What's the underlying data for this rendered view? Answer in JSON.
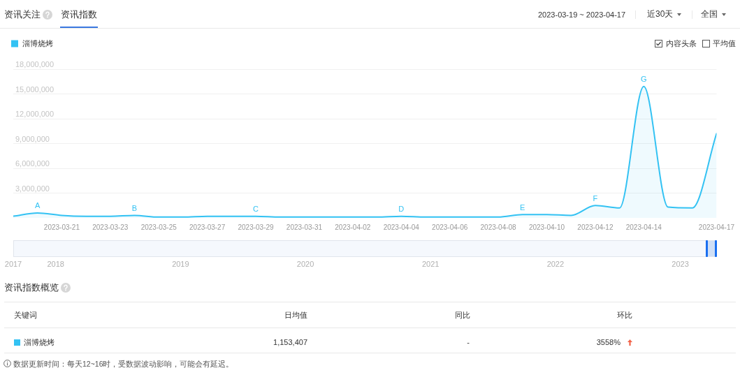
{
  "chart_data": [
    {
      "type": "other",
      "annotations": [
        "资讯关注",
        "资讯指数",
        "2023-03-19 ~ 2023-04-17",
        "近30天",
        "全国",
        "内容头条",
        "平均值"
      ]
    },
    {
      "type": "area",
      "x": [
        "2023-03-19",
        "2023-03-20",
        "2023-03-21",
        "2023-03-22",
        "2023-03-23",
        "2023-03-24",
        "2023-03-25",
        "2023-03-26",
        "2023-03-27",
        "2023-03-28",
        "2023-03-29",
        "2023-03-30",
        "2023-03-31",
        "2023-04-01",
        "2023-04-02",
        "2023-04-03",
        "2023-04-04",
        "2023-04-05",
        "2023-04-06",
        "2023-04-07",
        "2023-04-08",
        "2023-04-09",
        "2023-04-10",
        "2023-04-11",
        "2023-04-12",
        "2023-04-13",
        "2023-04-14",
        "2023-04-15",
        "2023-04-16",
        "2023-04-17"
      ],
      "series": [
        {
          "name": "淄博烧烤",
          "color": "#33c2f3",
          "values": [
            200000,
            600000,
            300000,
            200000,
            200000,
            300000,
            100000,
            100000,
            200000,
            200000,
            200000,
            100000,
            100000,
            100000,
            100000,
            100000,
            200000,
            100000,
            100000,
            100000,
            100000,
            400000,
            400000,
            300000,
            1500000,
            1200000,
            15900000,
            1300000,
            1200000,
            10200000
          ]
        }
      ],
      "xlim": [
        "2023-03-19",
        "2023-04-17"
      ],
      "xticks": [
        "2023-03-21",
        "2023-03-23",
        "2023-03-25",
        "2023-03-27",
        "2023-03-29",
        "2023-03-31",
        "2023-04-02",
        "2023-04-04",
        "2023-04-06",
        "2023-04-08",
        "2023-04-10",
        "2023-04-12",
        "2023-04-14",
        "2023-04-17"
      ],
      "x2lim": [
        "2017-08-30",
        "2023-04-17"
      ],
      "x2ticks": [
        {
          "value": "2017-08-30",
          "label": "2017"
        },
        {
          "value": "2018-01-01",
          "label": "2018"
        },
        {
          "value": "2019-01-01",
          "label": "2019"
        },
        {
          "value": "2020-01-01",
          "label": "2020"
        },
        {
          "value": "2021-01-01",
          "label": "2021"
        },
        {
          "value": "2022-01-01",
          "label": "2022"
        },
        {
          "value": "2023-01-01",
          "label": "2023"
        }
      ],
      "ylim": [
        0,
        18000000
      ],
      "yticks": [
        {
          "value": 3000000,
          "label": "3,000,000"
        },
        {
          "value": 6000000,
          "label": "6,000,000"
        },
        {
          "value": 9000000,
          "label": "9,000,000"
        },
        {
          "value": 12000000,
          "label": "12,000,000"
        },
        {
          "value": 15000000,
          "label": "15,000,000"
        },
        {
          "value": 18000000,
          "label": "18,000,000"
        }
      ],
      "grid": "y",
      "legend": "top left",
      "annotations": [
        {
          "text": "A",
          "x": "2023-03-20",
          "y": 600000
        },
        {
          "text": "B",
          "x": "2023-03-24",
          "y": 300000
        },
        {
          "text": "C",
          "x": "2023-03-29",
          "y": 200000
        },
        {
          "text": "D",
          "x": "2023-04-04",
          "y": 200000
        },
        {
          "text": "E",
          "x": "2023-04-09",
          "y": 400000
        },
        {
          "text": "F",
          "x": "2023-04-12",
          "y": 1500000
        },
        {
          "text": "G",
          "x": "2023-04-14",
          "y": 15900000
        }
      ]
    },
    {
      "type": "other",
      "title": "资讯指数概览",
      "annotations": [
        "关键词",
        "日均值",
        "同比",
        "环比",
        "淄博烧烤",
        "1,153,407",
        "-",
        "3558%",
        "数据更新时间：每天12~16时，受数据波动影响，可能会有延迟。"
      ]
    }
  ]
}
